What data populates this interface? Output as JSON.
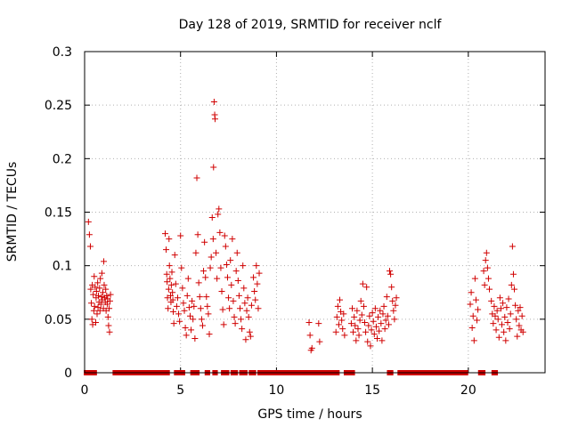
{
  "chart_data": {
    "type": "scatter",
    "title": "Day 128 of 2019, SRMTID for receiver nclf",
    "xlabel": "GPS time / hours",
    "ylabel": "SRMTID / TECUs",
    "xlim": [
      0,
      24
    ],
    "ylim": [
      0,
      0.3
    ],
    "xticks": [
      0,
      5,
      10,
      15,
      20
    ],
    "yticks": [
      0,
      0.05,
      0.1,
      0.15,
      0.2,
      0.25,
      0.3
    ],
    "xtick_labels": [
      "0",
      "5",
      "10",
      "15",
      "20"
    ],
    "ytick_labels": [
      "0",
      "0.05",
      "0.1",
      "0.15",
      "0.2",
      "0.25",
      "0.3"
    ],
    "grid": true,
    "marker": "+",
    "color": "#d00000",
    "series": [
      {
        "name": "SRMTID",
        "points": [
          [
            0.2,
            0.141
          ],
          [
            0.25,
            0.129
          ],
          [
            0.3,
            0.118
          ],
          [
            0.32,
            0.078
          ],
          [
            0.35,
            0.065
          ],
          [
            0.38,
            0.05
          ],
          [
            0.4,
            0.082
          ],
          [
            0.42,
            0.045
          ],
          [
            0.45,
            0.073
          ],
          [
            0.48,
            0.058
          ],
          [
            0.5,
            0.09
          ],
          [
            0.52,
            0.062
          ],
          [
            0.55,
            0.08
          ],
          [
            0.58,
            0.047
          ],
          [
            0.6,
            0.07
          ],
          [
            0.62,
            0.076
          ],
          [
            0.65,
            0.055
          ],
          [
            0.68,
            0.084
          ],
          [
            0.7,
            0.061
          ],
          [
            0.72,
            0.072
          ],
          [
            0.75,
            0.066
          ],
          [
            0.78,
            0.079
          ],
          [
            0.8,
            0.058
          ],
          [
            0.82,
            0.088
          ],
          [
            0.85,
            0.064
          ],
          [
            0.88,
            0.071
          ],
          [
            0.9,
            0.093
          ],
          [
            0.92,
            0.068
          ],
          [
            0.95,
            0.075
          ],
          [
            0.98,
            0.06
          ],
          [
            1.0,
            0.104
          ],
          [
            1.02,
            0.082
          ],
          [
            1.05,
            0.07
          ],
          [
            1.08,
            0.066
          ],
          [
            1.1,
            0.078
          ],
          [
            1.12,
            0.058
          ],
          [
            1.15,
            0.072
          ],
          [
            1.18,
            0.064
          ],
          [
            1.2,
            0.069
          ],
          [
            1.22,
            0.052
          ],
          [
            1.25,
            0.044
          ],
          [
            1.28,
            0.06
          ],
          [
            1.3,
            0.038
          ],
          [
            1.32,
            0.067
          ],
          [
            1.35,
            0.073
          ],
          [
            4.2,
            0.13
          ],
          [
            4.25,
            0.115
          ],
          [
            4.28,
            0.092
          ],
          [
            4.3,
            0.085
          ],
          [
            4.32,
            0.07
          ],
          [
            4.35,
            0.06
          ],
          [
            4.38,
            0.078
          ],
          [
            4.4,
            0.125
          ],
          [
            4.42,
            0.1
          ],
          [
            4.45,
            0.088
          ],
          [
            4.48,
            0.072
          ],
          [
            4.5,
            0.066
          ],
          [
            4.52,
            0.082
          ],
          [
            4.55,
            0.094
          ],
          [
            4.58,
            0.075
          ],
          [
            4.6,
            0.068
          ],
          [
            4.62,
            0.057
          ],
          [
            4.65,
            0.046
          ],
          [
            4.7,
            0.11
          ],
          [
            4.75,
            0.083
          ],
          [
            4.8,
            0.062
          ],
          [
            4.85,
            0.07
          ],
          [
            4.9,
            0.055
          ],
          [
            4.95,
            0.048
          ],
          [
            5.0,
            0.128
          ],
          [
            5.05,
            0.098
          ],
          [
            5.1,
            0.079
          ],
          [
            5.15,
            0.065
          ],
          [
            5.2,
            0.058
          ],
          [
            5.25,
            0.042
          ],
          [
            5.3,
            0.035
          ],
          [
            5.35,
            0.072
          ],
          [
            5.4,
            0.088
          ],
          [
            5.45,
            0.061
          ],
          [
            5.5,
            0.053
          ],
          [
            5.55,
            0.04
          ],
          [
            5.6,
            0.067
          ],
          [
            5.65,
            0.05
          ],
          [
            5.7,
            0.062
          ],
          [
            5.75,
            0.032
          ],
          [
            5.8,
            0.112
          ],
          [
            5.85,
            0.182
          ],
          [
            5.9,
            0.129
          ],
          [
            5.95,
            0.084
          ],
          [
            6.0,
            0.071
          ],
          [
            6.05,
            0.06
          ],
          [
            6.1,
            0.05
          ],
          [
            6.15,
            0.044
          ],
          [
            6.2,
            0.095
          ],
          [
            6.25,
            0.122
          ],
          [
            6.3,
            0.089
          ],
          [
            6.35,
            0.071
          ],
          [
            6.4,
            0.062
          ],
          [
            6.45,
            0.055
          ],
          [
            6.5,
            0.036
          ],
          [
            6.55,
            0.098
          ],
          [
            6.6,
            0.108
          ],
          [
            6.65,
            0.145
          ],
          [
            6.7,
            0.125
          ],
          [
            6.72,
            0.192
          ],
          [
            6.75,
            0.253
          ],
          [
            6.78,
            0.241
          ],
          [
            6.8,
            0.237
          ],
          [
            6.85,
            0.112
          ],
          [
            6.9,
            0.088
          ],
          [
            6.95,
            0.148
          ],
          [
            7.0,
            0.153
          ],
          [
            7.05,
            0.131
          ],
          [
            7.1,
            0.098
          ],
          [
            7.15,
            0.076
          ],
          [
            7.2,
            0.059
          ],
          [
            7.25,
            0.045
          ],
          [
            7.3,
            0.128
          ],
          [
            7.35,
            0.118
          ],
          [
            7.4,
            0.101
          ],
          [
            7.45,
            0.089
          ],
          [
            7.5,
            0.07
          ],
          [
            7.55,
            0.06
          ],
          [
            7.6,
            0.105
          ],
          [
            7.65,
            0.082
          ],
          [
            7.7,
            0.125
          ],
          [
            7.75,
            0.067
          ],
          [
            7.8,
            0.052
          ],
          [
            7.85,
            0.046
          ],
          [
            7.9,
            0.095
          ],
          [
            7.95,
            0.112
          ],
          [
            8.0,
            0.086
          ],
          [
            8.05,
            0.072
          ],
          [
            8.1,
            0.06
          ],
          [
            8.15,
            0.05
          ],
          [
            8.2,
            0.041
          ],
          [
            8.25,
            0.1
          ],
          [
            8.3,
            0.079
          ],
          [
            8.35,
            0.065
          ],
          [
            8.4,
            0.031
          ],
          [
            8.45,
            0.058
          ],
          [
            8.5,
            0.07
          ],
          [
            8.55,
            0.052
          ],
          [
            8.6,
            0.038
          ],
          [
            8.65,
            0.034
          ],
          [
            8.7,
            0.063
          ],
          [
            8.8,
            0.089
          ],
          [
            8.85,
            0.076
          ],
          [
            8.9,
            0.068
          ],
          [
            8.95,
            0.1
          ],
          [
            9.0,
            0.083
          ],
          [
            9.05,
            0.06
          ],
          [
            9.1,
            0.093
          ],
          [
            11.7,
            0.047
          ],
          [
            11.75,
            0.035
          ],
          [
            11.8,
            0.021
          ],
          [
            11.85,
            0.023
          ],
          [
            12.2,
            0.046
          ],
          [
            12.25,
            0.029
          ],
          [
            13.1,
            0.038
          ],
          [
            13.15,
            0.052
          ],
          [
            13.2,
            0.062
          ],
          [
            13.25,
            0.045
          ],
          [
            13.3,
            0.068
          ],
          [
            13.35,
            0.057
          ],
          [
            13.4,
            0.049
          ],
          [
            13.45,
            0.041
          ],
          [
            13.5,
            0.055
          ],
          [
            13.55,
            0.035
          ],
          [
            13.9,
            0.046
          ],
          [
            13.95,
            0.06
          ],
          [
            14.0,
            0.038
          ],
          [
            14.05,
            0.052
          ],
          [
            14.1,
            0.044
          ],
          [
            14.15,
            0.03
          ],
          [
            14.2,
            0.058
          ],
          [
            14.25,
            0.041
          ],
          [
            14.3,
            0.035
          ],
          [
            14.35,
            0.049
          ],
          [
            14.4,
            0.067
          ],
          [
            14.45,
            0.054
          ],
          [
            14.5,
            0.083
          ],
          [
            14.55,
            0.062
          ],
          [
            14.6,
            0.047
          ],
          [
            14.65,
            0.038
          ],
          [
            14.7,
            0.08
          ],
          [
            14.75,
            0.029
          ],
          [
            14.8,
            0.044
          ],
          [
            14.85,
            0.053
          ],
          [
            14.9,
            0.025
          ],
          [
            14.95,
            0.04
          ],
          [
            15.0,
            0.056
          ],
          [
            15.05,
            0.048
          ],
          [
            15.1,
            0.036
          ],
          [
            15.15,
            0.06
          ],
          [
            15.2,
            0.043
          ],
          [
            15.25,
            0.032
          ],
          [
            15.3,
            0.052
          ],
          [
            15.35,
            0.039
          ],
          [
            15.4,
            0.058
          ],
          [
            15.45,
            0.046
          ],
          [
            15.5,
            0.03
          ],
          [
            15.55,
            0.055
          ],
          [
            15.6,
            0.062
          ],
          [
            15.65,
            0.041
          ],
          [
            15.7,
            0.049
          ],
          [
            15.75,
            0.071
          ],
          [
            15.8,
            0.053
          ],
          [
            15.85,
            0.045
          ],
          [
            15.9,
            0.095
          ],
          [
            15.95,
            0.092
          ],
          [
            16.0,
            0.08
          ],
          [
            16.05,
            0.067
          ],
          [
            16.1,
            0.058
          ],
          [
            16.15,
            0.05
          ],
          [
            16.2,
            0.063
          ],
          [
            16.25,
            0.07
          ],
          [
            20.1,
            0.064
          ],
          [
            20.15,
            0.075
          ],
          [
            20.2,
            0.042
          ],
          [
            20.25,
            0.053
          ],
          [
            20.3,
            0.03
          ],
          [
            20.35,
            0.088
          ],
          [
            20.4,
            0.068
          ],
          [
            20.45,
            0.049
          ],
          [
            20.5,
            0.059
          ],
          [
            20.8,
            0.095
          ],
          [
            20.85,
            0.082
          ],
          [
            20.9,
            0.105
          ],
          [
            20.95,
            0.112
          ],
          [
            21.0,
            0.098
          ],
          [
            21.05,
            0.088
          ],
          [
            21.1,
            0.078
          ],
          [
            21.2,
            0.067
          ],
          [
            21.25,
            0.055
          ],
          [
            21.3,
            0.046
          ],
          [
            21.35,
            0.062
          ],
          [
            21.4,
            0.053
          ],
          [
            21.45,
            0.04
          ],
          [
            21.5,
            0.058
          ],
          [
            21.55,
            0.05
          ],
          [
            21.6,
            0.033
          ],
          [
            21.65,
            0.07
          ],
          [
            21.7,
            0.06
          ],
          [
            21.75,
            0.045
          ],
          [
            21.8,
            0.065
          ],
          [
            21.85,
            0.038
          ],
          [
            21.9,
            0.052
          ],
          [
            21.95,
            0.03
          ],
          [
            22.0,
            0.061
          ],
          [
            22.05,
            0.047
          ],
          [
            22.1,
            0.069
          ],
          [
            22.15,
            0.041
          ],
          [
            22.2,
            0.055
          ],
          [
            22.25,
            0.082
          ],
          [
            22.3,
            0.118
          ],
          [
            22.35,
            0.092
          ],
          [
            22.4,
            0.078
          ],
          [
            22.45,
            0.063
          ],
          [
            22.5,
            0.05
          ],
          [
            22.55,
            0.034
          ],
          [
            22.6,
            0.058
          ],
          [
            22.65,
            0.044
          ],
          [
            22.7,
            0.061
          ],
          [
            22.75,
            0.04
          ],
          [
            22.8,
            0.053
          ],
          [
            22.85,
            0.038
          ]
        ],
        "zero_segments": [
          [
            0.05,
            0.55
          ],
          [
            1.55,
            4.35
          ],
          [
            4.75,
            5.15
          ],
          [
            5.6,
            5.9
          ],
          [
            6.35,
            6.45
          ],
          [
            6.75,
            6.85
          ],
          [
            7.2,
            7.45
          ],
          [
            7.7,
            7.9
          ],
          [
            8.15,
            8.4
          ],
          [
            8.65,
            8.85
          ],
          [
            9.1,
            13.2
          ],
          [
            13.6,
            14.0
          ],
          [
            15.85,
            16.0
          ],
          [
            16.4,
            19.9
          ],
          [
            20.6,
            20.8
          ],
          [
            21.3,
            21.45
          ]
        ]
      }
    ]
  }
}
